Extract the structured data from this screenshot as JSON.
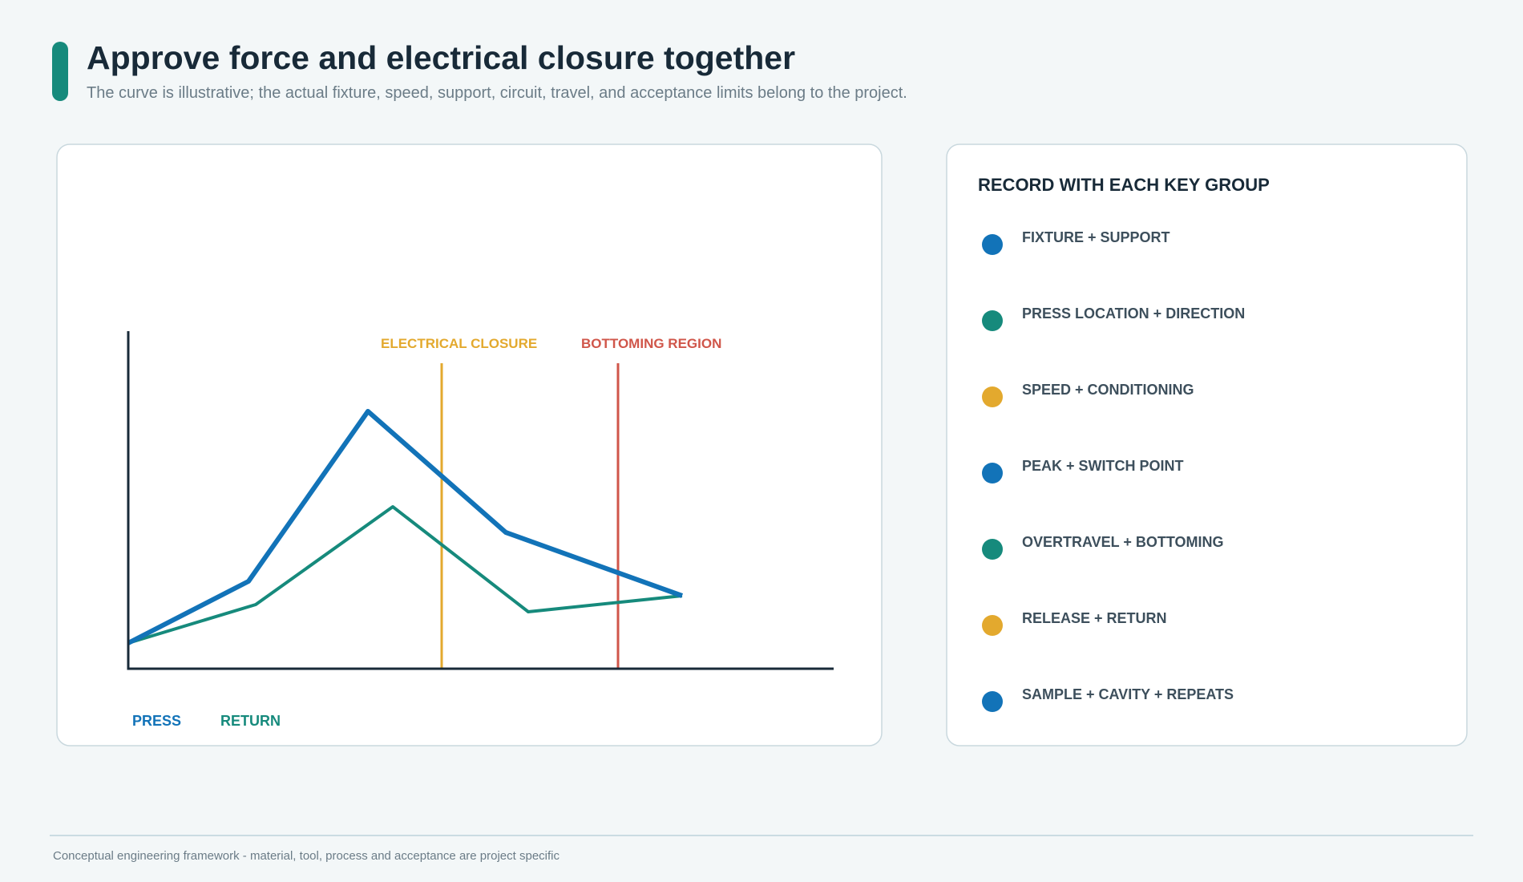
{
  "header": {
    "title": "Approve force and electrical closure together",
    "subtitle": "The curve is illustrative; the actual fixture, speed, support, circuit, travel, and acceptance limits belong to the project."
  },
  "chart": {
    "markers": [
      "ELECTRICAL CLOSURE",
      "BOTTOMING REGION"
    ],
    "legend": [
      "PRESS",
      "RETURN"
    ]
  },
  "record": {
    "title": "RECORD WITH EACH KEY GROUP",
    "items": [
      "FIXTURE + SUPPORT",
      "PRESS LOCATION + DIRECTION",
      "SPEED + CONDITIONING",
      "PEAK + SWITCH POINT",
      "OVERTRAVEL + BOTTOMING",
      "RELEASE + RETURN",
      "SAMPLE + CAVITY + REPEATS"
    ]
  },
  "footer": "Conceptual engineering framework - material, tool, process and acceptance are project specific"
}
